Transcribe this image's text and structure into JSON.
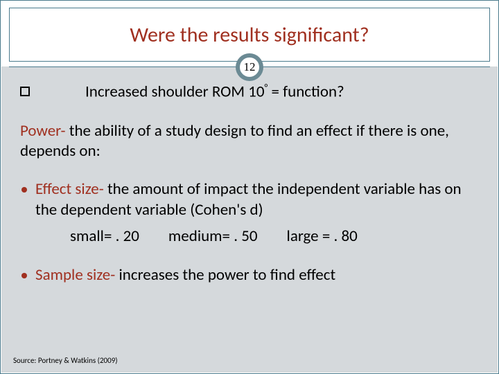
{
  "colors": {
    "accent": "#a03020",
    "frame": "#4a7a8c",
    "badge_ring": "#6b8a94",
    "body_bg": "#d5d9dc",
    "text": "#000000",
    "white": "#ffffff"
  },
  "typography": {
    "title_fontsize": 30,
    "body_fontsize": 23,
    "source_fontsize": 11,
    "badge_fontsize": 17
  },
  "title": "Were the results significant?",
  "page_number": "12",
  "question": {
    "prefix": "Increased shoulder ROM 10",
    "degree": "°",
    "suffix": " = function?"
  },
  "power": {
    "term": "Power- ",
    "definition": "the ability of a study design to find an effect if there is one, depends on:"
  },
  "effect_size": {
    "term": "Effect size- ",
    "definition": "the amount of impact the independent variable has on the dependent variable (Cohen's d)",
    "scale": {
      "small": "small= . 20",
      "medium": "medium= . 50",
      "large": "large = . 80"
    }
  },
  "sample_size": {
    "term": "Sample size- ",
    "definition": "increases the power to find effect"
  },
  "source": "Source: Portney & Watkins (2009)"
}
